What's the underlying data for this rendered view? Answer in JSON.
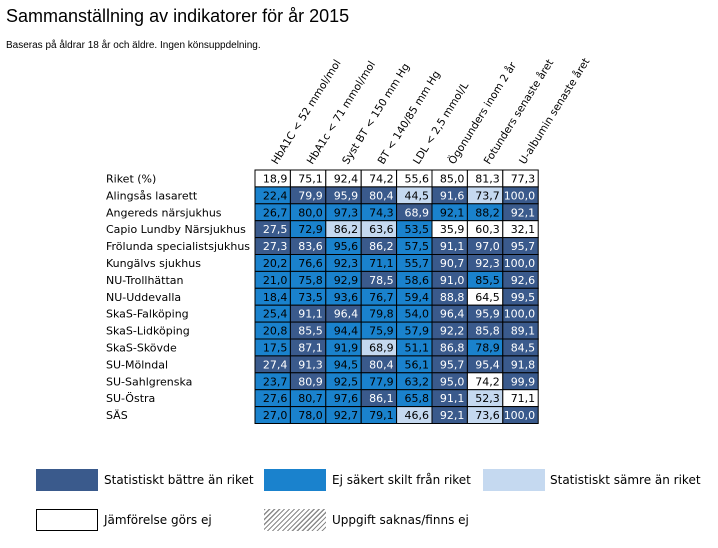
{
  "title": "Sammanställning av indikatorer för år 2015",
  "subtitle": "Baseras på åldrar 18 år och äldre. Ingen könsuppdelning.",
  "colors": {
    "better": "#3a5a8c",
    "uncertain": "#1a82cd",
    "worse": "#c5d9f0",
    "none": "#ffffff",
    "missing": "hatched-grey"
  },
  "legend": [
    {
      "key": "better",
      "label": "Statistiskt bättre än riket"
    },
    {
      "key": "uncertain",
      "label": "Ej säkert skilt från riket"
    },
    {
      "key": "worse",
      "label": "Statistiskt sämre än riket"
    },
    {
      "key": "none",
      "label": "Jämförelse görs ej"
    },
    {
      "key": "missing",
      "label": "Uppgift saknas/finns ej"
    }
  ],
  "chart_data": {
    "type": "table",
    "columns": [
      "HbA1C < 52 mmol/mol",
      "HbA1c < 71 mmol/mol",
      "Syst BT < 150 mm Hg",
      "BT < 140/85 mm Hg",
      "LDL < 2,5 mmol/L",
      "Ögonunders inom 2 år",
      "Fotunders senaste året",
      "U-albumin senaste året"
    ],
    "rows": [
      {
        "name": "Riket (%)",
        "values": [
          18.9,
          75.1,
          92.4,
          74.2,
          55.6,
          85.0,
          81.3,
          77.3
        ],
        "status": [
          "none",
          "none",
          "none",
          "none",
          "none",
          "none",
          "none",
          "none"
        ]
      },
      {
        "name": "Alingsås lasarett",
        "values": [
          22.4,
          79.9,
          95.9,
          80.4,
          44.5,
          91.6,
          73.7,
          100.0
        ],
        "status": [
          "uncertain",
          "better",
          "better",
          "better",
          "worse",
          "better",
          "worse",
          "better"
        ]
      },
      {
        "name": "Angereds närsjukhus",
        "values": [
          26.7,
          80.0,
          97.3,
          74.3,
          68.9,
          92.1,
          88.2,
          92.1
        ],
        "status": [
          "uncertain",
          "uncertain",
          "uncertain",
          "uncertain",
          "better",
          "uncertain",
          "uncertain",
          "better"
        ]
      },
      {
        "name": "Capio Lundby Närsjukhus",
        "values": [
          27.5,
          72.9,
          86.2,
          63.6,
          53.5,
          35.9,
          60.3,
          32.1
        ],
        "status": [
          "better",
          "uncertain",
          "worse",
          "worse",
          "uncertain",
          "none",
          "none",
          "none"
        ]
      },
      {
        "name": "Frölunda specialistsjukhus",
        "values": [
          27.3,
          83.6,
          95.6,
          86.2,
          57.5,
          91.1,
          97.0,
          95.7
        ],
        "status": [
          "better",
          "better",
          "uncertain",
          "better",
          "uncertain",
          "better",
          "better",
          "better"
        ]
      },
      {
        "name": "Kungälvs sjukhus",
        "values": [
          20.2,
          76.6,
          92.3,
          71.1,
          55.7,
          90.7,
          92.3,
          100.0
        ],
        "status": [
          "uncertain",
          "uncertain",
          "uncertain",
          "uncertain",
          "uncertain",
          "better",
          "better",
          "better"
        ]
      },
      {
        "name": "NU-Trollhättan",
        "values": [
          21.0,
          75.8,
          92.9,
          78.5,
          58.6,
          91.0,
          85.5,
          92.6
        ],
        "status": [
          "uncertain",
          "uncertain",
          "uncertain",
          "better",
          "uncertain",
          "better",
          "uncertain",
          "better"
        ]
      },
      {
        "name": "NU-Uddevalla",
        "values": [
          18.4,
          73.5,
          93.6,
          76.7,
          59.4,
          88.8,
          64.5,
          99.5
        ],
        "status": [
          "uncertain",
          "uncertain",
          "uncertain",
          "uncertain",
          "uncertain",
          "better",
          "none",
          "better"
        ]
      },
      {
        "name": "SkaS-Falköping",
        "values": [
          25.4,
          91.1,
          96.4,
          79.8,
          54.0,
          96.4,
          95.9,
          100.0
        ],
        "status": [
          "uncertain",
          "better",
          "better",
          "uncertain",
          "uncertain",
          "better",
          "better",
          "better"
        ]
      },
      {
        "name": "SkaS-Lidköping",
        "values": [
          20.8,
          85.5,
          94.4,
          75.9,
          57.9,
          92.2,
          85.8,
          89.1
        ],
        "status": [
          "uncertain",
          "better",
          "uncertain",
          "uncertain",
          "uncertain",
          "better",
          "better",
          "better"
        ]
      },
      {
        "name": "SkaS-Skövde",
        "values": [
          17.5,
          87.1,
          91.9,
          68.9,
          51.1,
          86.8,
          78.9,
          84.5
        ],
        "status": [
          "uncertain",
          "better",
          "uncertain",
          "worse",
          "uncertain",
          "better",
          "uncertain",
          "better"
        ]
      },
      {
        "name": "SU-Mölndal",
        "values": [
          27.4,
          91.3,
          94.5,
          80.4,
          56.1,
          95.7,
          95.4,
          91.8
        ],
        "status": [
          "better",
          "better",
          "uncertain",
          "better",
          "uncertain",
          "better",
          "better",
          "better"
        ]
      },
      {
        "name": "SU-Sahlgrenska",
        "values": [
          23.7,
          80.9,
          92.5,
          77.9,
          63.2,
          95.0,
          74.2,
          99.9
        ],
        "status": [
          "uncertain",
          "better",
          "uncertain",
          "uncertain",
          "uncertain",
          "better",
          "none",
          "better"
        ]
      },
      {
        "name": "SU-Östra",
        "values": [
          27.6,
          80.7,
          97.6,
          86.1,
          65.8,
          91.1,
          52.3,
          71.1
        ],
        "status": [
          "uncertain",
          "uncertain",
          "uncertain",
          "better",
          "uncertain",
          "better",
          "worse",
          "none"
        ]
      },
      {
        "name": "SÄS",
        "values": [
          27.0,
          78.0,
          92.7,
          79.1,
          46.6,
          92.1,
          73.6,
          100.0
        ],
        "status": [
          "uncertain",
          "uncertain",
          "uncertain",
          "uncertain",
          "worse",
          "better",
          "worse",
          "better"
        ]
      }
    ]
  }
}
